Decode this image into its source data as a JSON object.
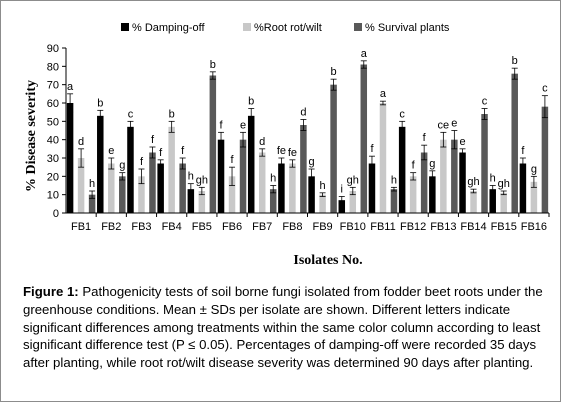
{
  "chart_data": {
    "type": "bar",
    "ylabel": "% Disease severity",
    "xlabel": "Isolates No.",
    "ylim": [
      0,
      90
    ],
    "yticks": [
      0,
      10,
      20,
      30,
      40,
      50,
      60,
      70,
      80,
      90
    ],
    "legend_position": "top",
    "grid": false,
    "error_bars": true,
    "categories": [
      "FB1",
      "FB2",
      "FB3",
      "FB4",
      "FB5",
      "FB6",
      "FB7",
      "FB8",
      "FB9",
      "FB10",
      "FB11",
      "FB12",
      "FB13",
      "FB14",
      "FB15",
      "FB16"
    ],
    "series": [
      {
        "name": "% Damping-off",
        "color": "#000000",
        "values": [
          60,
          53,
          47,
          27,
          13,
          40,
          53,
          27,
          20,
          7,
          27,
          47,
          20,
          33,
          13,
          27
        ],
        "errors": [
          5,
          3,
          3,
          2,
          3,
          4,
          4,
          3,
          4,
          2,
          4,
          3,
          3,
          2,
          2,
          3
        ],
        "letters": [
          "a",
          "b",
          "c",
          "f",
          "h",
          "f",
          "b",
          "fe",
          "g",
          "i",
          "f",
          "c",
          "g",
          "e",
          "h",
          "f"
        ]
      },
      {
        "name": "%Root rot/wilt",
        "color": "#c8c8c8",
        "values": [
          30,
          27,
          20,
          47,
          12,
          20,
          33,
          27,
          10,
          12,
          60,
          20,
          40,
          12,
          11,
          17
        ],
        "errors": [
          5,
          3,
          4,
          3,
          2,
          5,
          2,
          2,
          1,
          2,
          1,
          2,
          4,
          1,
          1,
          3
        ],
        "letters": [
          "d",
          "e",
          "f",
          "b",
          "gh",
          "f",
          "d",
          "fe",
          "h",
          "gh",
          "a",
          "f",
          "ce",
          "gh",
          "gh",
          "g"
        ]
      },
      {
        "name": "% Survival plants",
        "color": "#595959",
        "values": [
          10,
          20,
          33,
          27,
          75,
          40,
          13,
          48,
          70,
          81,
          13,
          33,
          40,
          54,
          76,
          58
        ],
        "errors": [
          2,
          2,
          3,
          3,
          2,
          4,
          2,
          3,
          3,
          2,
          1,
          4,
          5,
          3,
          3,
          6
        ],
        "letters": [
          "h",
          "g",
          "f",
          "f",
          "b",
          "e",
          "h",
          "d",
          "b",
          "a",
          "h",
          "f",
          "e",
          "c",
          "b",
          "c"
        ]
      }
    ]
  },
  "caption": {
    "label": "Figure 1:",
    "text": " Pathogenicity tests of soil borne fungi isolated from fodder beet roots under the greenhouse conditions. Mean ± SDs per isolate are shown. Different letters indicate significant differences among treatments within the same color column according to least significant difference test (P ≤ 0.05). Percentages of damping-off were recorded 35 days after planting, while root rot/wilt disease severity was determined 90 days after planting."
  }
}
